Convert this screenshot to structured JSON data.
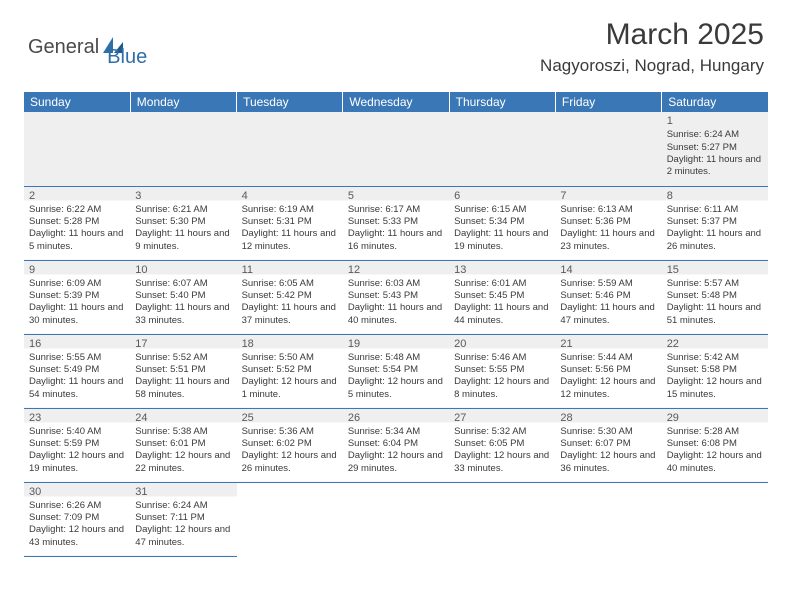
{
  "logo": {
    "part1": "General",
    "part2": "Blue"
  },
  "title": "March 2025",
  "location": "Nagyoroszi, Nograd, Hungary",
  "weekdays": [
    "Sunday",
    "Monday",
    "Tuesday",
    "Wednesday",
    "Thursday",
    "Friday",
    "Saturday"
  ],
  "colors": {
    "header_bg": "#3a77b6",
    "header_text": "#ffffff",
    "gray_bg": "#efefef",
    "text": "#3a3a3a",
    "logo_blue": "#2f6fa8"
  },
  "weeks": [
    [
      {
        "gray": true
      },
      {
        "gray": true
      },
      {
        "gray": true
      },
      {
        "gray": true
      },
      {
        "gray": true
      },
      {
        "gray": true
      },
      {
        "day": "1",
        "sunrise": "Sunrise: 6:24 AM",
        "sunset": "Sunset: 5:27 PM",
        "daylight": "Daylight: 11 hours and 2 minutes."
      }
    ],
    [
      {
        "day": "2",
        "sunrise": "Sunrise: 6:22 AM",
        "sunset": "Sunset: 5:28 PM",
        "daylight": "Daylight: 11 hours and 5 minutes."
      },
      {
        "day": "3",
        "sunrise": "Sunrise: 6:21 AM",
        "sunset": "Sunset: 5:30 PM",
        "daylight": "Daylight: 11 hours and 9 minutes."
      },
      {
        "day": "4",
        "sunrise": "Sunrise: 6:19 AM",
        "sunset": "Sunset: 5:31 PM",
        "daylight": "Daylight: 11 hours and 12 minutes."
      },
      {
        "day": "5",
        "sunrise": "Sunrise: 6:17 AM",
        "sunset": "Sunset: 5:33 PM",
        "daylight": "Daylight: 11 hours and 16 minutes."
      },
      {
        "day": "6",
        "sunrise": "Sunrise: 6:15 AM",
        "sunset": "Sunset: 5:34 PM",
        "daylight": "Daylight: 11 hours and 19 minutes."
      },
      {
        "day": "7",
        "sunrise": "Sunrise: 6:13 AM",
        "sunset": "Sunset: 5:36 PM",
        "daylight": "Daylight: 11 hours and 23 minutes."
      },
      {
        "day": "8",
        "sunrise": "Sunrise: 6:11 AM",
        "sunset": "Sunset: 5:37 PM",
        "daylight": "Daylight: 11 hours and 26 minutes."
      }
    ],
    [
      {
        "day": "9",
        "sunrise": "Sunrise: 6:09 AM",
        "sunset": "Sunset: 5:39 PM",
        "daylight": "Daylight: 11 hours and 30 minutes."
      },
      {
        "day": "10",
        "sunrise": "Sunrise: 6:07 AM",
        "sunset": "Sunset: 5:40 PM",
        "daylight": "Daylight: 11 hours and 33 minutes."
      },
      {
        "day": "11",
        "sunrise": "Sunrise: 6:05 AM",
        "sunset": "Sunset: 5:42 PM",
        "daylight": "Daylight: 11 hours and 37 minutes."
      },
      {
        "day": "12",
        "sunrise": "Sunrise: 6:03 AM",
        "sunset": "Sunset: 5:43 PM",
        "daylight": "Daylight: 11 hours and 40 minutes."
      },
      {
        "day": "13",
        "sunrise": "Sunrise: 6:01 AM",
        "sunset": "Sunset: 5:45 PM",
        "daylight": "Daylight: 11 hours and 44 minutes."
      },
      {
        "day": "14",
        "sunrise": "Sunrise: 5:59 AM",
        "sunset": "Sunset: 5:46 PM",
        "daylight": "Daylight: 11 hours and 47 minutes."
      },
      {
        "day": "15",
        "sunrise": "Sunrise: 5:57 AM",
        "sunset": "Sunset: 5:48 PM",
        "daylight": "Daylight: 11 hours and 51 minutes."
      }
    ],
    [
      {
        "day": "16",
        "sunrise": "Sunrise: 5:55 AM",
        "sunset": "Sunset: 5:49 PM",
        "daylight": "Daylight: 11 hours and 54 minutes."
      },
      {
        "day": "17",
        "sunrise": "Sunrise: 5:52 AM",
        "sunset": "Sunset: 5:51 PM",
        "daylight": "Daylight: 11 hours and 58 minutes."
      },
      {
        "day": "18",
        "sunrise": "Sunrise: 5:50 AM",
        "sunset": "Sunset: 5:52 PM",
        "daylight": "Daylight: 12 hours and 1 minute."
      },
      {
        "day": "19",
        "sunrise": "Sunrise: 5:48 AM",
        "sunset": "Sunset: 5:54 PM",
        "daylight": "Daylight: 12 hours and 5 minutes."
      },
      {
        "day": "20",
        "sunrise": "Sunrise: 5:46 AM",
        "sunset": "Sunset: 5:55 PM",
        "daylight": "Daylight: 12 hours and 8 minutes."
      },
      {
        "day": "21",
        "sunrise": "Sunrise: 5:44 AM",
        "sunset": "Sunset: 5:56 PM",
        "daylight": "Daylight: 12 hours and 12 minutes."
      },
      {
        "day": "22",
        "sunrise": "Sunrise: 5:42 AM",
        "sunset": "Sunset: 5:58 PM",
        "daylight": "Daylight: 12 hours and 15 minutes."
      }
    ],
    [
      {
        "day": "23",
        "sunrise": "Sunrise: 5:40 AM",
        "sunset": "Sunset: 5:59 PM",
        "daylight": "Daylight: 12 hours and 19 minutes."
      },
      {
        "day": "24",
        "sunrise": "Sunrise: 5:38 AM",
        "sunset": "Sunset: 6:01 PM",
        "daylight": "Daylight: 12 hours and 22 minutes."
      },
      {
        "day": "25",
        "sunrise": "Sunrise: 5:36 AM",
        "sunset": "Sunset: 6:02 PM",
        "daylight": "Daylight: 12 hours and 26 minutes."
      },
      {
        "day": "26",
        "sunrise": "Sunrise: 5:34 AM",
        "sunset": "Sunset: 6:04 PM",
        "daylight": "Daylight: 12 hours and 29 minutes."
      },
      {
        "day": "27",
        "sunrise": "Sunrise: 5:32 AM",
        "sunset": "Sunset: 6:05 PM",
        "daylight": "Daylight: 12 hours and 33 minutes."
      },
      {
        "day": "28",
        "sunrise": "Sunrise: 5:30 AM",
        "sunset": "Sunset: 6:07 PM",
        "daylight": "Daylight: 12 hours and 36 minutes."
      },
      {
        "day": "29",
        "sunrise": "Sunrise: 5:28 AM",
        "sunset": "Sunset: 6:08 PM",
        "daylight": "Daylight: 12 hours and 40 minutes."
      }
    ],
    [
      {
        "day": "30",
        "sunrise": "Sunrise: 6:26 AM",
        "sunset": "Sunset: 7:09 PM",
        "daylight": "Daylight: 12 hours and 43 minutes."
      },
      {
        "day": "31",
        "sunrise": "Sunrise: 6:24 AM",
        "sunset": "Sunset: 7:11 PM",
        "daylight": "Daylight: 12 hours and 47 minutes."
      },
      {
        "blank": true
      },
      {
        "blank": true
      },
      {
        "blank": true
      },
      {
        "blank": true
      },
      {
        "blank": true
      }
    ]
  ]
}
